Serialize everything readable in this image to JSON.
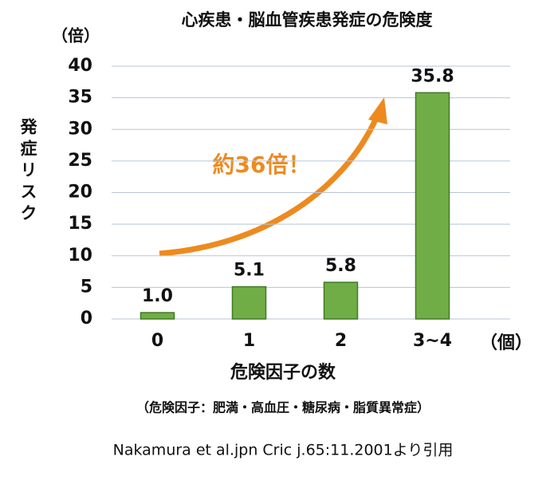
{
  "chart_data": {
    "type": "bar",
    "title": "心疾患・脳血管疾患発症の危険度",
    "y_unit": "（倍）",
    "ylabel": "発症リスク",
    "xlabel": "危険因子の数",
    "x_unit": "（個）",
    "note": "（危険因子：肥満・高血圧・糖尿病・脂質異常症）",
    "source": "Nakamura et al.jpn Cric j.65:11.2001より引用",
    "annotation": "約36倍！",
    "categories": [
      "0",
      "1",
      "2",
      "3~4"
    ],
    "values": [
      1.0,
      5.1,
      5.8,
      35.8
    ],
    "value_labels": [
      "1.0",
      "5.1",
      "5.8",
      "35.8"
    ],
    "color": "#70ad47",
    "ylim": [
      0,
      40
    ],
    "yticks": [
      0,
      5,
      10,
      15,
      20,
      25,
      30,
      35,
      40
    ],
    "grid": true
  }
}
